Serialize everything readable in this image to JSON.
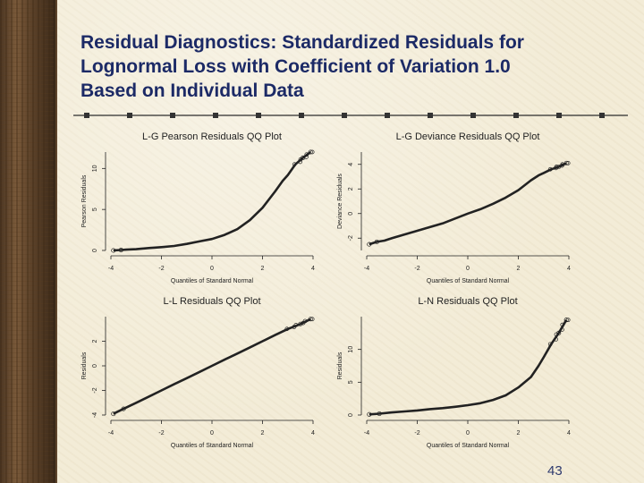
{
  "slide": {
    "title_lines": [
      "Residual Diagnostics: Standardized Residuals for",
      "Lognormal Loss with Coefficient of Variation 1.0",
      "Based on Individual Data"
    ],
    "page_number": "43"
  },
  "colors": {
    "title": "#1c2a66",
    "ink": "#222222",
    "background": "#f3ecd7"
  },
  "chart_data": [
    {
      "type": "scatter",
      "title": "L-G Pearson Residuals QQ Plot",
      "xlabel": "Quantiles of Standard Normal",
      "ylabel": "Pearson Residuals",
      "xlim": [
        -4,
        4
      ],
      "ylim": [
        0,
        12
      ],
      "xticks": [
        "-4",
        "-2",
        "0",
        "2",
        "4"
      ],
      "yticks": [
        "0",
        "5",
        "10"
      ],
      "shape": "convex-up",
      "points": [
        [
          -3.9,
          0
        ],
        [
          -3.6,
          0.05
        ],
        [
          -3.4,
          0.1
        ],
        [
          -3,
          0.15
        ],
        [
          -2.5,
          0.3
        ],
        [
          -2,
          0.4
        ],
        [
          -1.5,
          0.55
        ],
        [
          -1,
          0.8
        ],
        [
          -0.5,
          1.1
        ],
        [
          0,
          1.4
        ],
        [
          0.5,
          1.9
        ],
        [
          1,
          2.6
        ],
        [
          1.5,
          3.7
        ],
        [
          2,
          5.2
        ],
        [
          2.5,
          7.2
        ],
        [
          2.8,
          8.5
        ],
        [
          3,
          9.2
        ],
        [
          3.3,
          10.5
        ],
        [
          3.6,
          11.3
        ],
        [
          3.9,
          12
        ]
      ]
    },
    {
      "type": "scatter",
      "title": "L-G Deviance Residuals QQ Plot",
      "xlabel": "Quantiles of Standard Normal",
      "ylabel": "Deviance Residuals",
      "xlim": [
        -4,
        4
      ],
      "ylim": [
        -3,
        5
      ],
      "xticks": [
        "-4",
        "-2",
        "0",
        "2",
        "4"
      ],
      "yticks": [
        "-2",
        "0",
        "2",
        "4"
      ],
      "shape": "mildly convex",
      "points": [
        [
          -3.9,
          -2.5
        ],
        [
          -3.6,
          -2.3
        ],
        [
          -3.3,
          -2.2
        ],
        [
          -3,
          -2.0
        ],
        [
          -2.5,
          -1.7
        ],
        [
          -2,
          -1.4
        ],
        [
          -1.5,
          -1.1
        ],
        [
          -1,
          -0.8
        ],
        [
          -0.5,
          -0.4
        ],
        [
          0,
          0
        ],
        [
          0.5,
          0.35
        ],
        [
          1,
          0.8
        ],
        [
          1.5,
          1.3
        ],
        [
          2,
          1.9
        ],
        [
          2.5,
          2.7
        ],
        [
          2.8,
          3.1
        ],
        [
          3,
          3.3
        ],
        [
          3.3,
          3.6
        ],
        [
          3.6,
          3.8
        ],
        [
          3.9,
          4.1
        ]
      ]
    },
    {
      "type": "scatter",
      "title": "L-L Residuals QQ Plot",
      "xlabel": "Quantiles of Standard Normal",
      "ylabel": "Residuals",
      "xlim": [
        -4,
        4
      ],
      "ylim": [
        -4,
        4
      ],
      "xticks": [
        "-4",
        "-2",
        "0",
        "2",
        "4"
      ],
      "yticks": [
        "-4",
        "-2",
        "0",
        "2"
      ],
      "shape": "linear",
      "points": [
        [
          -3.9,
          -3.9
        ],
        [
          -3.5,
          -3.5
        ],
        [
          -3,
          -3
        ],
        [
          -2.5,
          -2.5
        ],
        [
          -2,
          -2
        ],
        [
          -1.5,
          -1.5
        ],
        [
          -1,
          -1
        ],
        [
          -0.5,
          -0.5
        ],
        [
          0,
          0
        ],
        [
          0.5,
          0.5
        ],
        [
          1,
          1
        ],
        [
          1.5,
          1.5
        ],
        [
          2,
          2
        ],
        [
          2.5,
          2.5
        ],
        [
          3,
          3
        ],
        [
          3.5,
          3.4
        ],
        [
          3.9,
          3.8
        ]
      ]
    },
    {
      "type": "scatter",
      "title": "L-N Residuals QQ Plot",
      "xlabel": "Quantiles of Standard Normal",
      "ylabel": "Residuals",
      "xlim": [
        -4,
        4
      ],
      "ylim": [
        0,
        15
      ],
      "xticks": [
        "-4",
        "-2",
        "0",
        "2",
        "4"
      ],
      "yticks": [
        "0",
        "5",
        "10"
      ],
      "shape": "convex-up",
      "points": [
        [
          -3.9,
          0.1
        ],
        [
          -3.5,
          0.2
        ],
        [
          -3,
          0.4
        ],
        [
          -2.5,
          0.55
        ],
        [
          -2,
          0.7
        ],
        [
          -1.5,
          0.9
        ],
        [
          -1,
          1.05
        ],
        [
          -0.5,
          1.25
        ],
        [
          0,
          1.5
        ],
        [
          0.5,
          1.8
        ],
        [
          1,
          2.3
        ],
        [
          1.5,
          3.0
        ],
        [
          2,
          4.2
        ],
        [
          2.5,
          5.8
        ],
        [
          2.8,
          7.5
        ],
        [
          3,
          8.8
        ],
        [
          3.3,
          10.8
        ],
        [
          3.6,
          12.5
        ],
        [
          3.9,
          14.5
        ]
      ]
    }
  ]
}
